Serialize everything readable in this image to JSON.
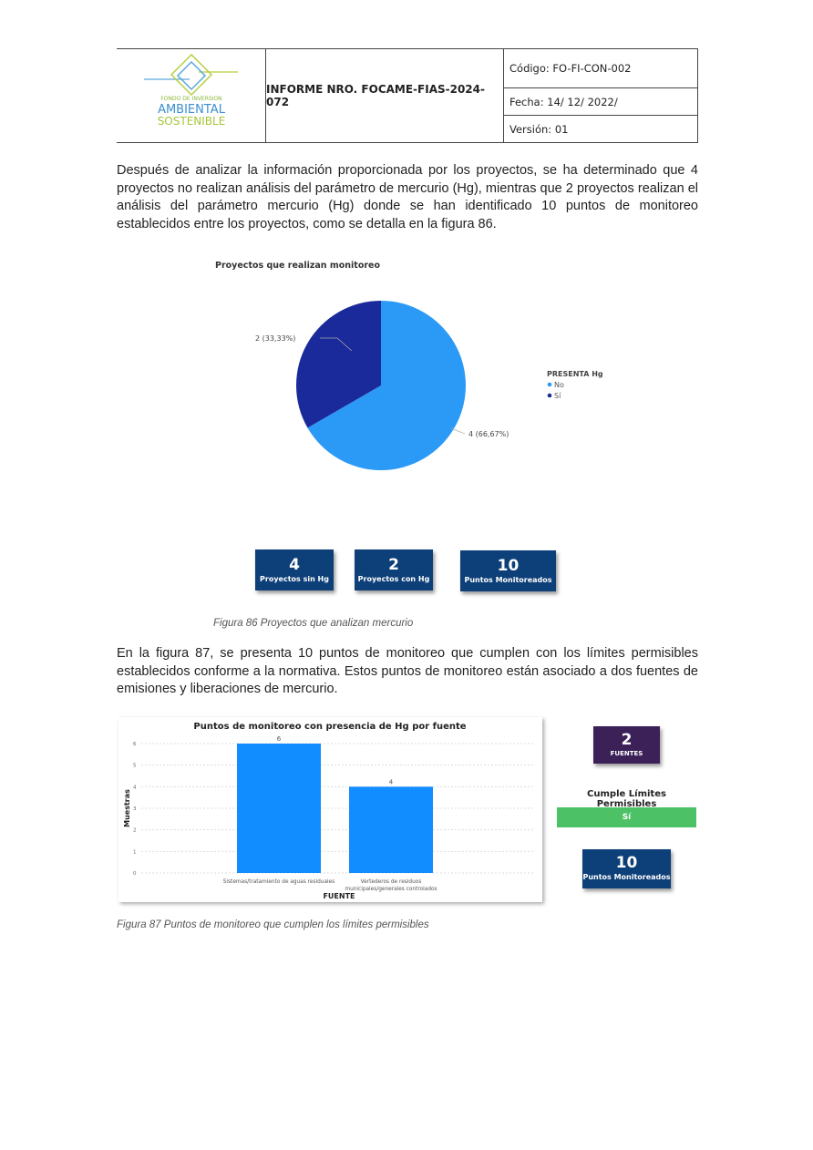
{
  "header": {
    "logo_text": [
      "FONDO DE INVERSION",
      "AMBIENTAL",
      "SOSTENIBLE"
    ],
    "title": "INFORME NRO. FOCAME-FIAS-2024-072",
    "codigo": "Código: FO-FI-CON-002",
    "fecha": "Fecha: 14/ 12/ 2022/",
    "version": "Versión: 01"
  },
  "paragraph1": "Después de analizar la información proporcionada por los proyectos, se ha determinado que 4 proyectos no realizan análisis del parámetro de mercurio (Hg), mientras que 2 proyectos realizan el análisis del parámetro mercurio (Hg) donde se han identificado 10 puntos de monitoreo establecidos entre los proyectos, como se detalla en la figura 86.",
  "figure86": {
    "caption": "Figura 86 Proyectos que analizan mercurio",
    "cards": [
      {
        "value": "4",
        "label": "Proyectos sin Hg"
      },
      {
        "value": "2",
        "label": "Proyectos con Hg"
      },
      {
        "value": "10",
        "label": "Puntos Monitoreados"
      }
    ]
  },
  "paragraph2": "En la figura 87, se presenta 10 puntos de monitoreo que cumplen con los límites permisibles establecidos conforme a la normativa. Estos puntos de monitoreo están asociado a dos fuentes de emisiones y liberaciones de mercurio.",
  "figure87": {
    "caption": "Figura 87 Puntos de monitoreo que cumplen los límites permisibles",
    "fuentes_card": {
      "value": "2",
      "label": "FUENTES"
    },
    "cumple_label": "Cumple Límites Permisibles",
    "cumple_value": "Sí",
    "puntos_card": {
      "value": "10",
      "label": "Puntos Monitoreados"
    }
  },
  "colors": {
    "no": "#2b9af7",
    "si": "#1b2a9a",
    "bar": "#118dff",
    "card": "#0d3f78",
    "fuentes": "#3b2157",
    "green": "#4cc165"
  },
  "chart_data": [
    {
      "type": "pie",
      "title": "Proyectos que realizan monitoreo",
      "legend_title": "PRESENTA Hg",
      "legend_position": "right",
      "categories": [
        "No",
        "Sí"
      ],
      "values": [
        4,
        2
      ],
      "labels": [
        "4 (66,67%)",
        "2 (33,33%)"
      ]
    },
    {
      "type": "bar",
      "title": "Puntos de monitoreo con presencia de Hg por fuente",
      "xlabel": "FUENTE",
      "ylabel": "Muestras",
      "categories": [
        "Sistemas/tratamiento de aguas residuales",
        "Vertederos de residuos municipales/generales controlados"
      ],
      "category_lines": [
        [
          "Sistemas/tratamiento de aguas residuales"
        ],
        [
          "Vertederos de residuos",
          "municipales/generales controlados"
        ]
      ],
      "values": [
        6,
        4
      ],
      "ylim": [
        0,
        6
      ],
      "yticks": [
        0,
        1,
        2,
        3,
        4,
        5,
        6
      ],
      "grid": true
    }
  ]
}
